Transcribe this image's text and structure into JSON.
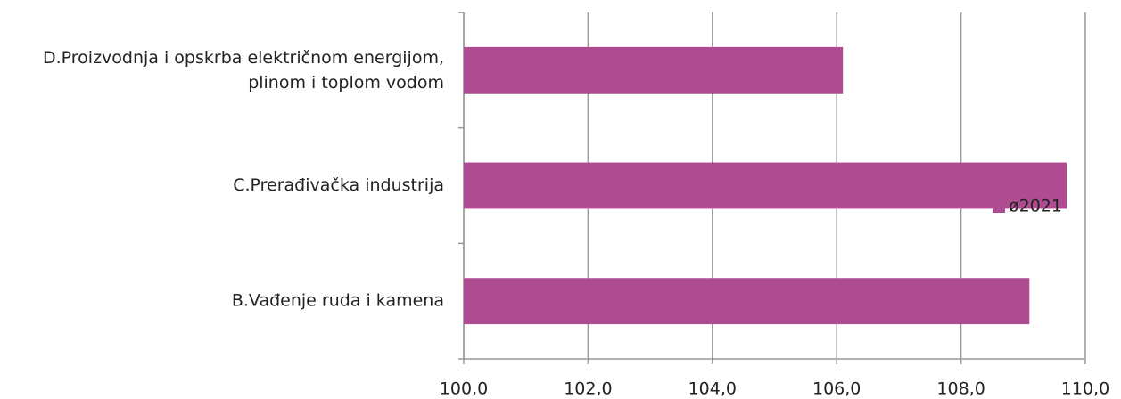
{
  "chart_data": {
    "type": "barh",
    "categories": [
      "D.Proizvodnja i opskrba električnom energijom,\nplinom i toplom vodom",
      "C.Prerađivačka industrija",
      "B.Vađenje ruda i kamena"
    ],
    "series": [
      {
        "name": "ø2021",
        "color": "#ae4b91",
        "values": [
          106.1,
          109.7,
          109.1
        ]
      }
    ],
    "xlim": [
      100,
      110
    ],
    "xticks": [
      {
        "value": 100,
        "label": "100,0"
      },
      {
        "value": 102,
        "label": "102,0"
      },
      {
        "value": 104,
        "label": "104,0"
      },
      {
        "value": 106,
        "label": "106,0"
      },
      {
        "value": 108,
        "label": "108,0"
      },
      {
        "value": 110,
        "label": "110,0"
      }
    ],
    "grid": true,
    "legend": "right"
  }
}
